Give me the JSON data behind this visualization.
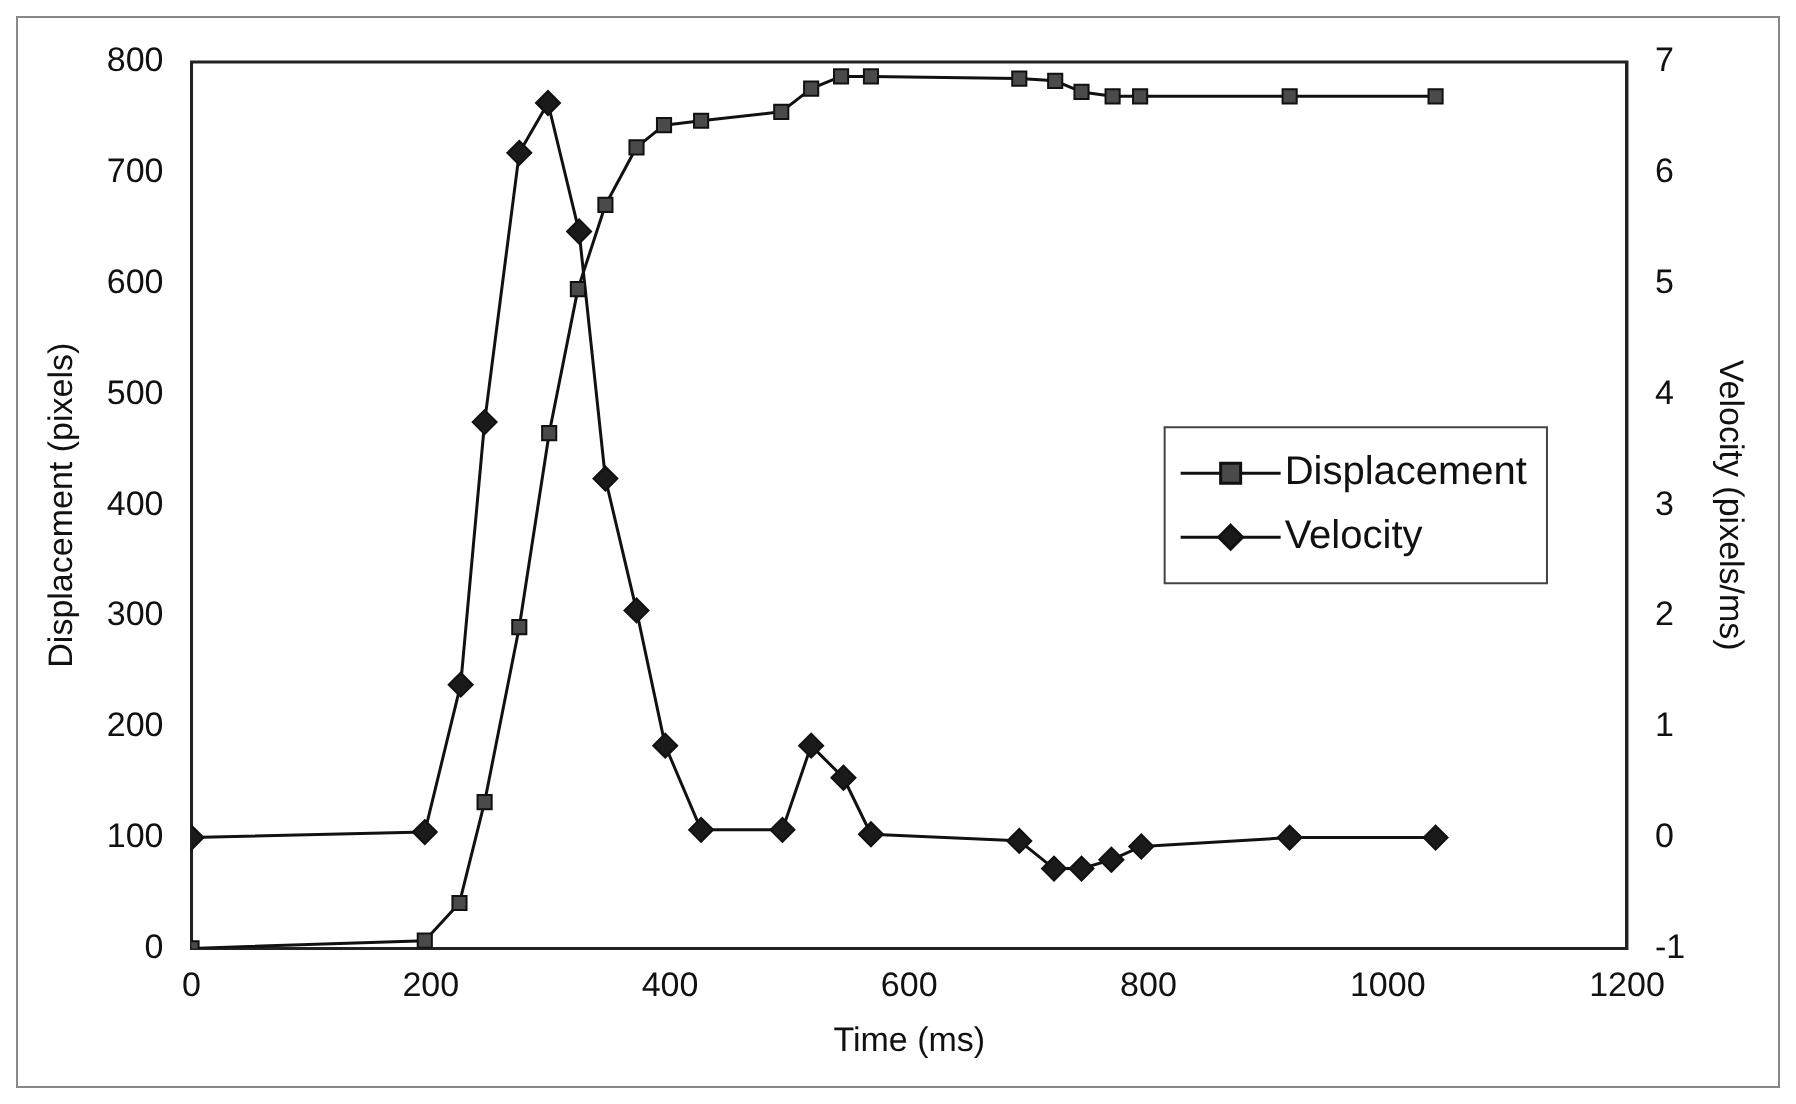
{
  "chart_data": {
    "type": "line",
    "xlabel": "Time (ms)",
    "ylabel": "Displacement (pixels)",
    "y2label": "Velocity (pixels/ms)",
    "xlim": [
      0,
      1200
    ],
    "xticks": [
      0,
      200,
      400,
      600,
      800,
      1000,
      1200
    ],
    "ylim": [
      0,
      800
    ],
    "yticks": [
      0,
      100,
      200,
      300,
      400,
      500,
      600,
      700,
      800
    ],
    "y2lim": [
      -1,
      7
    ],
    "y2ticks": [
      -1,
      0,
      1,
      2,
      3,
      4,
      5,
      6,
      7
    ],
    "grid": false,
    "legend": "right",
    "line_style": "solid",
    "series": [
      {
        "name": "Displacement",
        "color": "#4a4a4a",
        "marker": "square",
        "x": [
          0,
          195,
          224,
          245,
          274,
          299,
          323,
          346,
          372,
          395,
          426,
          493,
          518,
          543,
          568,
          692,
          722,
          744,
          770,
          793,
          918,
          1040
        ],
        "values": [
          0,
          7,
          41,
          132,
          290,
          465,
          595,
          671,
          723,
          743,
          747,
          755,
          776,
          787,
          787,
          785,
          783,
          773,
          769,
          769,
          769,
          769
        ]
      },
      {
        "name": "Velocity",
        "color": "#1a1a1a",
        "marker": "diamond",
        "axis": "y2",
        "x": [
          0,
          195,
          225,
          245,
          274,
          298,
          324,
          346,
          372,
          396,
          426,
          494,
          518,
          545,
          568,
          692,
          721,
          744,
          769,
          794,
          918,
          1040
        ],
        "values": [
          0,
          0.05,
          1.38,
          3.75,
          6.18,
          6.63,
          5.47,
          3.24,
          2.05,
          0.83,
          0.07,
          0.07,
          0.83,
          0.54,
          0.03,
          -0.03,
          -0.28,
          -0.28,
          -0.2,
          -0.08,
          0,
          0
        ]
      }
    ]
  }
}
